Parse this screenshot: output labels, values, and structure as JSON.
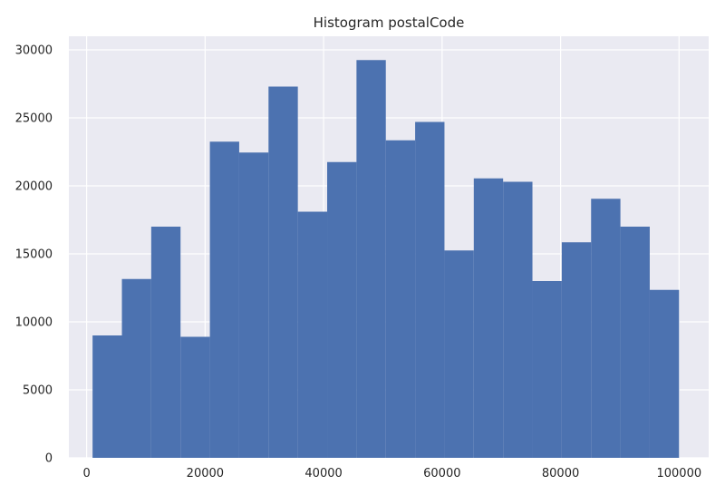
{
  "chart_data": {
    "type": "bar",
    "title": "Histogram postalCode",
    "xlabel": "",
    "ylabel": "",
    "bins": [
      {
        "start": 1000,
        "end": 5950,
        "count": 9000
      },
      {
        "start": 5950,
        "end": 10900,
        "count": 13150
      },
      {
        "start": 10900,
        "end": 15850,
        "count": 17000
      },
      {
        "start": 15850,
        "end": 20800,
        "count": 8900
      },
      {
        "start": 20800,
        "end": 25750,
        "count": 23250
      },
      {
        "start": 25750,
        "end": 30700,
        "count": 22450
      },
      {
        "start": 30700,
        "end": 35650,
        "count": 27300
      },
      {
        "start": 35650,
        "end": 40600,
        "count": 18100
      },
      {
        "start": 40600,
        "end": 45550,
        "count": 21750
      },
      {
        "start": 45550,
        "end": 50500,
        "count": 29250
      },
      {
        "start": 50500,
        "end": 55450,
        "count": 23350
      },
      {
        "start": 55450,
        "end": 60400,
        "count": 24700
      },
      {
        "start": 60400,
        "end": 65350,
        "count": 15250
      },
      {
        "start": 65350,
        "end": 70300,
        "count": 20550
      },
      {
        "start": 70300,
        "end": 75250,
        "count": 20300
      },
      {
        "start": 75250,
        "end": 80200,
        "count": 13000
      },
      {
        "start": 80200,
        "end": 85150,
        "count": 15850
      },
      {
        "start": 85150,
        "end": 90100,
        "count": 19050
      },
      {
        "start": 90100,
        "end": 95050,
        "count": 17000
      },
      {
        "start": 95050,
        "end": 100000,
        "count": 12350
      }
    ],
    "xlim": [
      -3000,
      105000
    ],
    "ylim": [
      0,
      31000
    ],
    "xticks": [
      0,
      20000,
      40000,
      60000,
      80000,
      100000
    ],
    "yticks": [
      0,
      5000,
      10000,
      15000,
      20000,
      25000,
      30000
    ],
    "grid": true,
    "colors": {
      "bar": "#4c72b0",
      "background": "#eaeaf2",
      "grid": "#ffffff",
      "text": "#262626"
    }
  }
}
